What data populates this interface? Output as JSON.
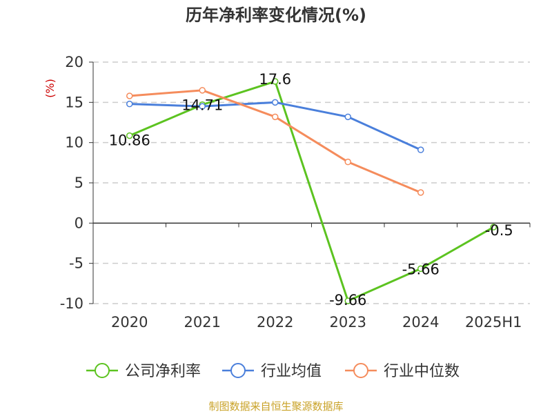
{
  "chart_data": {
    "type": "line",
    "title": "历年净利率变化情况(%)",
    "ylabel": "(%)",
    "categories": [
      "2020",
      "2021",
      "2022",
      "2023",
      "2024",
      "2025H1"
    ],
    "ylim": [
      -10,
      20
    ],
    "yticks": [
      20,
      15,
      10,
      5,
      0,
      -5,
      -10
    ],
    "grid": true,
    "legend_position": "bottom",
    "series": [
      {
        "name": "公司净利率",
        "color": "#5cc320",
        "values": [
          10.86,
          14.71,
          17.6,
          -9.66,
          -5.66,
          -0.5
        ],
        "labels": [
          "10.86",
          "14.71",
          "17.6",
          "-9.66",
          "-5.66",
          "-0.5"
        ]
      },
      {
        "name": "行业均值",
        "color": "#4a7fdb",
        "values": [
          14.8,
          14.5,
          15.0,
          13.2,
          9.1,
          null
        ]
      },
      {
        "name": "行业中位数",
        "color": "#f58c5c",
        "values": [
          15.8,
          16.5,
          13.2,
          7.6,
          3.8,
          null
        ]
      }
    ]
  },
  "unit_color": "#cc0000",
  "source": "制图数据来自恒生聚源数据库"
}
